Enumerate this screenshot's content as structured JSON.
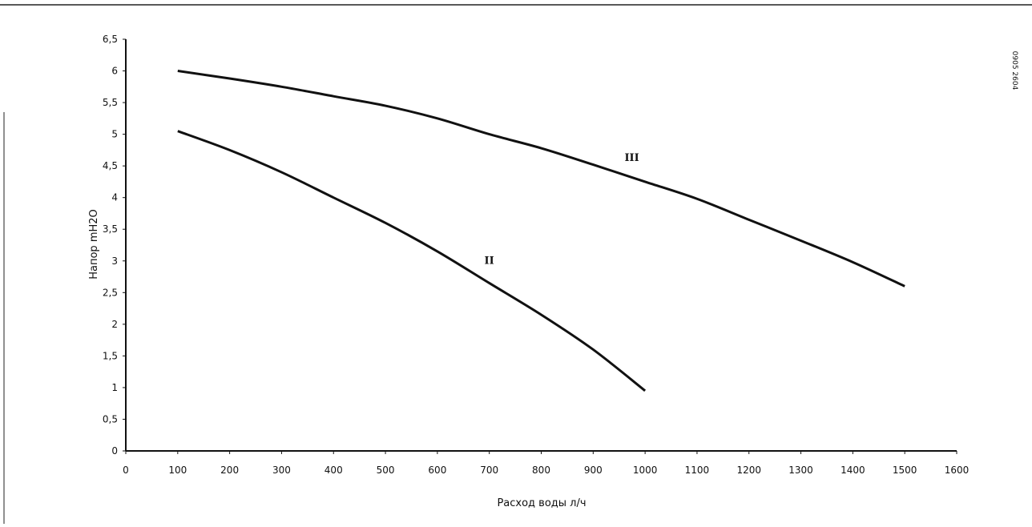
{
  "chart_data": {
    "type": "line",
    "title": "",
    "xlabel": "Расход воды л/ч",
    "ylabel": "Напор mH2O",
    "xlim": [
      0,
      1600
    ],
    "ylim": [
      0,
      6.5
    ],
    "x_ticks": [
      "0",
      "100",
      "200",
      "300",
      "400",
      "500",
      "600",
      "700",
      "800",
      "900",
      "1000",
      "1100",
      "1200",
      "1300",
      "1400",
      "1500",
      "1600"
    ],
    "y_ticks": [
      "0",
      "0,5",
      "1",
      "1,5",
      "2",
      "2,5",
      "3",
      "3,5",
      "4",
      "4,5",
      "5",
      "5,5",
      "6",
      "6,5"
    ],
    "grid": false,
    "series": [
      {
        "name": "II",
        "x": [
          100,
          200,
          300,
          400,
          500,
          600,
          700,
          800,
          900,
          1000
        ],
        "y": [
          5.05,
          4.75,
          4.4,
          4.0,
          3.6,
          3.15,
          2.65,
          2.15,
          1.6,
          0.95
        ]
      },
      {
        "name": "III",
        "x": [
          100,
          200,
          300,
          400,
          500,
          600,
          700,
          800,
          900,
          1000,
          1100,
          1200,
          1300,
          1400,
          1500
        ],
        "y": [
          6.0,
          5.88,
          5.75,
          5.6,
          5.45,
          5.25,
          5.0,
          4.78,
          4.52,
          4.25,
          3.98,
          3.65,
          3.32,
          2.98,
          2.6
        ]
      }
    ],
    "side_code": "0905 2604",
    "line_color": "#111111"
  }
}
